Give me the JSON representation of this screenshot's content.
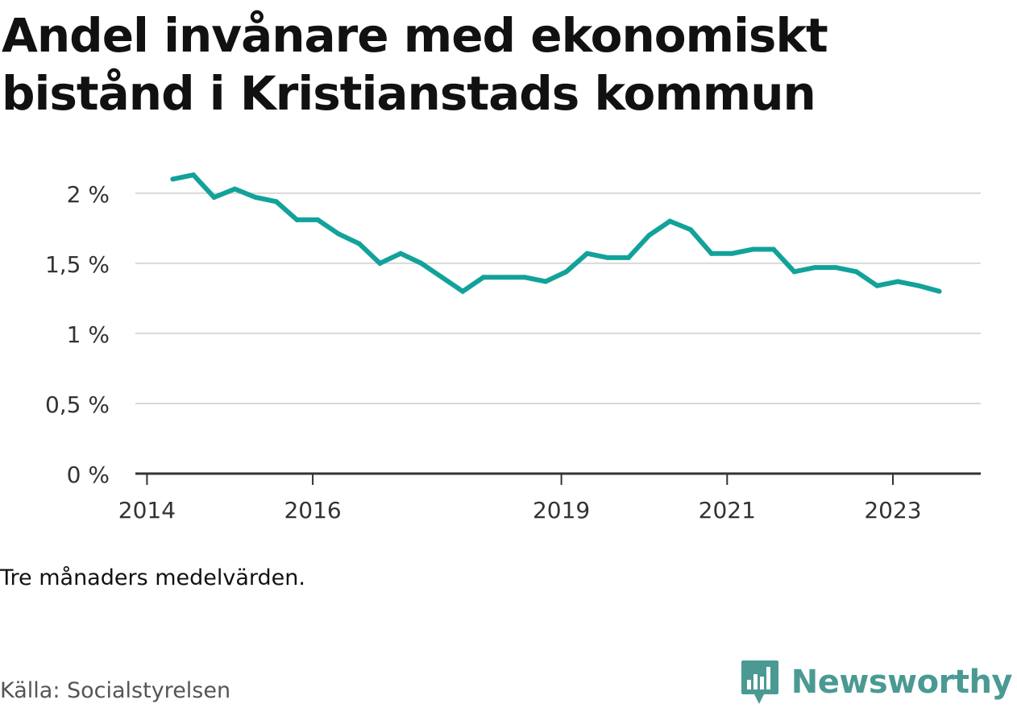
{
  "title": "Andel invånare med ekonomiskt bistånd i Kristianstads kommun",
  "note": "Tre månaders medelvärden.",
  "source": "Källa: Socialstyrelsen",
  "brand": {
    "name": "Newsworthy",
    "logo_icon": "bar-chart-speech-bubble-icon"
  },
  "colors": {
    "line": "#12a29a",
    "grid": "#d9d9d9",
    "axis": "#333333",
    "brand": "#4a9a93"
  },
  "chart_data": {
    "type": "line",
    "xlabel": "",
    "ylabel": "",
    "ylim": [
      0,
      2.2
    ],
    "grid": true,
    "yticks": [
      {
        "value": 0,
        "label": "0 %"
      },
      {
        "value": 0.5,
        "label": "0,5 %"
      },
      {
        "value": 1,
        "label": "1 %"
      },
      {
        "value": 1.5,
        "label": "1,5 %"
      },
      {
        "value": 2,
        "label": "2 %"
      }
    ],
    "xticks": [
      {
        "value": 2014.0,
        "label": "2014"
      },
      {
        "value": 2016.0,
        "label": "2016"
      },
      {
        "value": 2019.0,
        "label": "2019"
      },
      {
        "value": 2021.0,
        "label": "2021"
      },
      {
        "value": 2023.0,
        "label": "2023"
      }
    ],
    "xlim": [
      2013.86,
      2024.06
    ],
    "series": [
      {
        "name": "",
        "x": [
          2014.31,
          2014.56,
          2014.81,
          2015.06,
          2015.31,
          2015.56,
          2015.81,
          2016.06,
          2016.31,
          2016.56,
          2016.81,
          2017.06,
          2017.31,
          2017.56,
          2017.81,
          2018.06,
          2018.31,
          2018.56,
          2018.81,
          2019.06,
          2019.31,
          2019.56,
          2019.81,
          2020.06,
          2020.31,
          2020.56,
          2020.81,
          2021.06,
          2021.31,
          2021.56,
          2021.81,
          2022.06,
          2022.31,
          2022.56,
          2022.81,
          2023.06,
          2023.31,
          2023.56
        ],
        "values": [
          2.1,
          2.13,
          1.97,
          2.03,
          1.97,
          1.94,
          1.81,
          1.81,
          1.71,
          1.64,
          1.5,
          1.57,
          1.5,
          1.4,
          1.3,
          1.4,
          1.4,
          1.4,
          1.37,
          1.44,
          1.57,
          1.54,
          1.54,
          1.7,
          1.8,
          1.74,
          1.57,
          1.57,
          1.6,
          1.6,
          1.44,
          1.47,
          1.47,
          1.44,
          1.34,
          1.37,
          1.34,
          1.3
        ]
      }
    ]
  }
}
